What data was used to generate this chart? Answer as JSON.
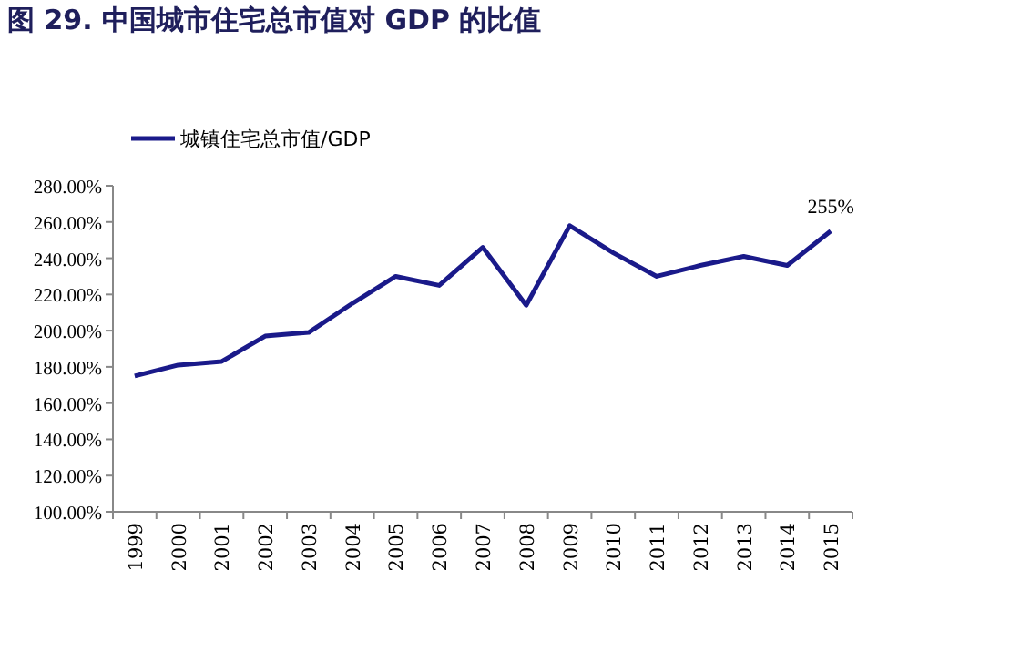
{
  "chart_data": {
    "type": "line",
    "title": "图 29. 中国城市住宅总市值对 GDP 的比值",
    "categories": [
      "1999",
      "2000",
      "2001",
      "2002",
      "2003",
      "2004",
      "2005",
      "2006",
      "2007",
      "2008",
      "2009",
      "2010",
      "2011",
      "2012",
      "2013",
      "2014",
      "2015"
    ],
    "series": [
      {
        "name": "城镇住宅总市值/GDP",
        "color": "#1a1a8a",
        "values": [
          175,
          181,
          183,
          197,
          199,
          215,
          230,
          225,
          246,
          214,
          258,
          243,
          230,
          236,
          241,
          236,
          255
        ]
      }
    ],
    "ylim": [
      100,
      280
    ],
    "yticks": [
      {
        "value": 100,
        "label": "100.00%"
      },
      {
        "value": 120,
        "label": "120.00%"
      },
      {
        "value": 140,
        "label": "140.00%"
      },
      {
        "value": 160,
        "label": "160.00%"
      },
      {
        "value": 180,
        "label": "180.00%"
      },
      {
        "value": 200,
        "label": "200.00%"
      },
      {
        "value": 220,
        "label": "220.00%"
      },
      {
        "value": 240,
        "label": "240.00%"
      },
      {
        "value": 260,
        "label": "260.00%"
      },
      {
        "value": 280,
        "label": "280.00%"
      }
    ],
    "annotations": [
      {
        "text": "255%",
        "x": "2015",
        "y": 255
      }
    ],
    "legend": "top left",
    "grid": false,
    "marker": "none",
    "line_style": "solid"
  }
}
